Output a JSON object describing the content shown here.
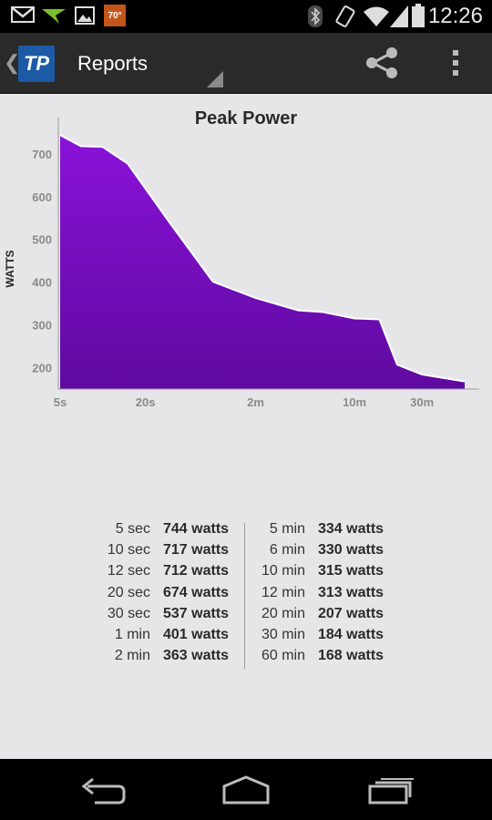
{
  "status_bar": {
    "time": "12:26",
    "temperature_badge": "70°",
    "icons": [
      "gmail-icon",
      "app-notification-icon",
      "image-icon",
      "weather-icon",
      "bluetooth-icon",
      "vibrate-icon",
      "wifi-icon",
      "signal-icon",
      "battery-icon"
    ]
  },
  "action_bar": {
    "title": "Reports",
    "logo_text": "TP",
    "icons": [
      "back-chevron-icon",
      "share-icon",
      "overflow-menu-icon"
    ]
  },
  "chart_data": {
    "type": "area",
    "title": "Peak Power",
    "ylabel": "WATTS",
    "xlabel": "",
    "x_scale": "log",
    "x_tick_labels": [
      "5s",
      "20s",
      "2m",
      "10m",
      "30m"
    ],
    "x_tick_seconds": [
      5,
      20,
      120,
      600,
      1800
    ],
    "xlim_seconds": [
      5,
      3600
    ],
    "y_ticks": [
      200,
      300,
      400,
      500,
      600,
      700
    ],
    "ylim": [
      150,
      755
    ],
    "grid": false,
    "color": "#7a0fd0",
    "points": [
      {
        "x": 5,
        "y": 744
      },
      {
        "x": 7,
        "y": 718
      },
      {
        "x": 10,
        "y": 716
      },
      {
        "x": 15,
        "y": 677
      },
      {
        "x": 30,
        "y": 537
      },
      {
        "x": 60,
        "y": 401
      },
      {
        "x": 120,
        "y": 363
      },
      {
        "x": 240,
        "y": 334
      },
      {
        "x": 360,
        "y": 330
      },
      {
        "x": 600,
        "y": 315
      },
      {
        "x": 900,
        "y": 313
      },
      {
        "x": 1200,
        "y": 207
      },
      {
        "x": 1800,
        "y": 184
      },
      {
        "x": 3600,
        "y": 168
      }
    ]
  },
  "peak_table": {
    "left": [
      {
        "duration": "5 sec",
        "value": "744 watts"
      },
      {
        "duration": "10 sec",
        "value": "717 watts"
      },
      {
        "duration": "12 sec",
        "value": "712 watts"
      },
      {
        "duration": "20 sec",
        "value": "674 watts"
      },
      {
        "duration": "30 sec",
        "value": "537 watts"
      },
      {
        "duration": "1 min",
        "value": "401 watts"
      },
      {
        "duration": "2 min",
        "value": "363 watts"
      }
    ],
    "right": [
      {
        "duration": "5 min",
        "value": "334 watts"
      },
      {
        "duration": "6 min",
        "value": "330 watts"
      },
      {
        "duration": "10 min",
        "value": "315 watts"
      },
      {
        "duration": "12 min",
        "value": "313 watts"
      },
      {
        "duration": "20 min",
        "value": "207 watts"
      },
      {
        "duration": "30 min",
        "value": "184 watts"
      },
      {
        "duration": "60 min",
        "value": "168 watts"
      }
    ]
  },
  "nav_bar": {
    "icons": [
      "back-icon",
      "home-icon",
      "recent-apps-icon"
    ]
  }
}
